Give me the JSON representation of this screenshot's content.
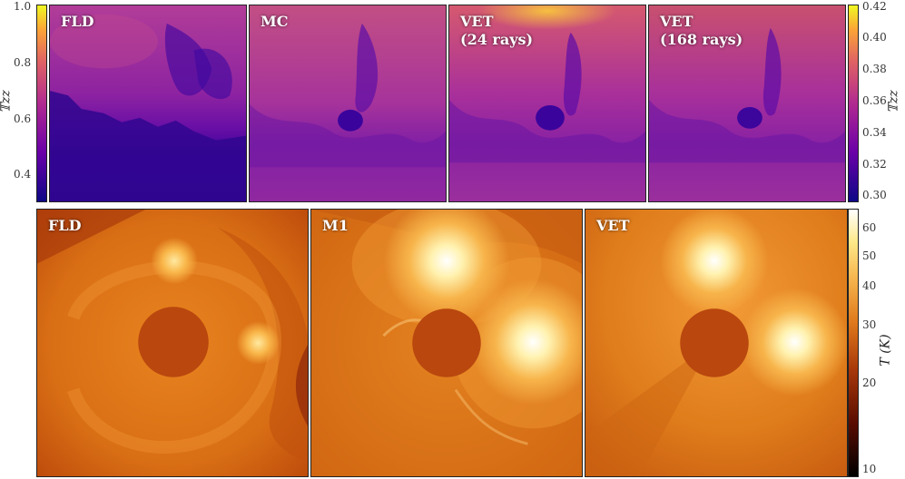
{
  "top_row": {
    "panels": [
      {
        "label": "FLD"
      },
      {
        "label": "MC"
      },
      {
        "label": "VET\n(24 rays)"
      },
      {
        "label": "VET\n(168 rays)"
      }
    ],
    "left_axis": {
      "title": "𝕋zz",
      "ticks": [
        "1.0",
        "0.8",
        "0.6",
        "0.4"
      ]
    },
    "right_colorbar": {
      "title": "𝕋zz",
      "ticks": [
        "0.42",
        "0.40",
        "0.38",
        "0.36",
        "0.34",
        "0.32",
        "0.30"
      ],
      "colormap": "plasma",
      "colors": [
        "#0d0887",
        "#7e03a8",
        "#cc4778",
        "#f89540",
        "#f0f921"
      ]
    }
  },
  "bottom_row": {
    "panels": [
      {
        "label": "FLD"
      },
      {
        "label": "M1"
      },
      {
        "label": "VET"
      }
    ],
    "colorbar": {
      "title": "T (K)",
      "ticks": [
        "60",
        "50",
        "40",
        "30",
        "20",
        "10"
      ],
      "colormap": "afmhot",
      "colors": [
        "#000000",
        "#6b1300",
        "#c8580a",
        "#ef9a2c",
        "#fde98a",
        "#ffffff"
      ]
    }
  }
}
